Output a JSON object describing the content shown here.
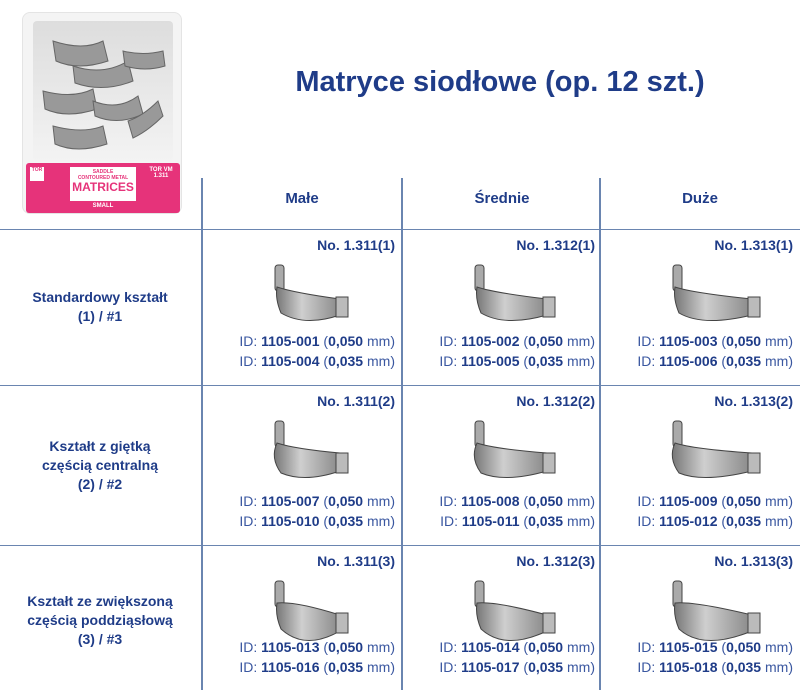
{
  "package": {
    "brand": "TOR VM",
    "center_lines": [
      "SADDLE",
      "CONTOURED METAL"
    ],
    "product": "MATRICES",
    "size": "SMALL",
    "code": "1.311"
  },
  "title": "Matryce siodłowe (op. 12 szt.)",
  "columns": [
    "Małe",
    "Średnie",
    "Duże"
  ],
  "rows": [
    {
      "label_lines": [
        "Standardowy kształt",
        "(1) / #1"
      ],
      "cells": [
        {
          "no": "No. 1.311(1)",
          "ids": [
            {
              "id": "1105-001",
              "thickness": "0,050"
            },
            {
              "id": "1105-004",
              "thickness": "0,035"
            }
          ]
        },
        {
          "no": "No. 1.312(1)",
          "ids": [
            {
              "id": "1105-002",
              "thickness": "0,050"
            },
            {
              "id": "1105-005",
              "thickness": "0,035"
            }
          ]
        },
        {
          "no": "No. 1.313(1)",
          "ids": [
            {
              "id": "1105-003",
              "thickness": "0,050"
            },
            {
              "id": "1105-006",
              "thickness": "0,035"
            }
          ]
        }
      ]
    },
    {
      "label_lines": [
        "Kształt z giętką",
        "częścią centralną",
        "(2) / #2"
      ],
      "cells": [
        {
          "no": "No. 1.311(2)",
          "ids": [
            {
              "id": "1105-007",
              "thickness": "0,050"
            },
            {
              "id": "1105-010",
              "thickness": "0,035"
            }
          ]
        },
        {
          "no": "No. 1.312(2)",
          "ids": [
            {
              "id": "1105-008",
              "thickness": "0,050"
            },
            {
              "id": "1105-011",
              "thickness": "0,035"
            }
          ]
        },
        {
          "no": "No. 1.313(2)",
          "ids": [
            {
              "id": "1105-009",
              "thickness": "0,050"
            },
            {
              "id": "1105-012",
              "thickness": "0,035"
            }
          ]
        }
      ]
    },
    {
      "label_lines": [
        "Kształt ze zwiększoną",
        "częścią poddziąsłową",
        "(3) / #3"
      ],
      "cells": [
        {
          "no": "No. 1.311(3)",
          "ids": [
            {
              "id": "1105-013",
              "thickness": "0,050"
            },
            {
              "id": "1105-016",
              "thickness": "0,035"
            }
          ]
        },
        {
          "no": "No. 1.312(3)",
          "ids": [
            {
              "id": "1105-014",
              "thickness": "0,050"
            },
            {
              "id": "1105-017",
              "thickness": "0,035"
            }
          ]
        },
        {
          "no": "No. 1.313(3)",
          "ids": [
            {
              "id": "1105-015",
              "thickness": "0,050"
            },
            {
              "id": "1105-018",
              "thickness": "0,035"
            }
          ]
        }
      ]
    }
  ],
  "id_prefix": "ID:",
  "unit": "mm",
  "colors": {
    "text": "#1f3c88",
    "grid": "#6a85b0",
    "package": "#e6337a"
  }
}
